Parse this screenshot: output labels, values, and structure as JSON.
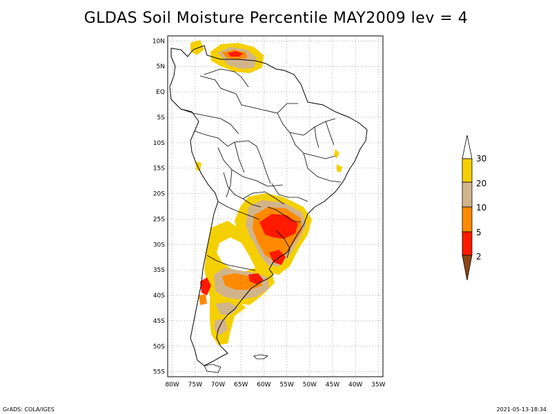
{
  "title": "GLDAS Soil Moisture Percentile MAY2009 lev = 4",
  "axes": {
    "lon_ticks": [
      "80W",
      "75W",
      "70W",
      "65W",
      "60W",
      "55W",
      "50W",
      "45W",
      "40W",
      "35W"
    ],
    "lat_ticks": [
      "10N",
      "5N",
      "EQ",
      "5S",
      "10S",
      "15S",
      "20S",
      "25S",
      "30S",
      "35S",
      "40S",
      "45S",
      "50S",
      "55S"
    ],
    "lon_range": [
      -81,
      -34
    ],
    "lat_range": [
      -56,
      11
    ],
    "grid": "dotted"
  },
  "colorbar": {
    "labels": [
      "30",
      "20",
      "10",
      "5",
      "2"
    ],
    "colors": [
      "#ffffff",
      "#f5d000",
      "#d2b48c",
      "#ff8a00",
      "#ff1a00",
      "#8b4513"
    ]
  },
  "footer": {
    "left": "GrADS: COLA/IGES",
    "right": "2021-05-13-18:34"
  }
}
